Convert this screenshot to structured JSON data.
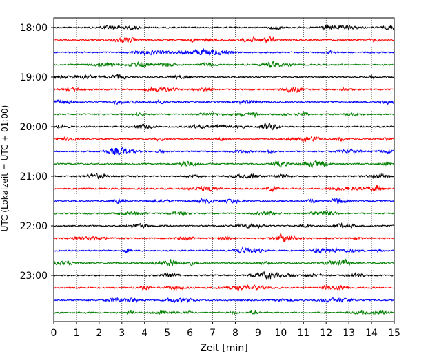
{
  "chart_data": {
    "type": "line",
    "subtype": "helicorder",
    "xlabel": "Zeit  [min]",
    "ylabel": "UTC (Lokalzeit = UTC + 01:00)",
    "xlim": [
      0,
      15
    ],
    "x_ticks": [
      "0",
      "1",
      "2",
      "3",
      "4",
      "5",
      "6",
      "7",
      "8",
      "9",
      "10",
      "11",
      "12",
      "13",
      "14",
      "15"
    ],
    "y_ticks": [
      "18:00",
      "19:00",
      "20:00",
      "21:00",
      "22:00",
      "23:00"
    ],
    "grid": "vertical dotted lines at each minute",
    "trace_colors": [
      "#000000",
      "#ff0000",
      "#0000ff",
      "#008000"
    ],
    "traces": [
      {
        "start_utc": "18:00",
        "color": "#000000"
      },
      {
        "start_utc": "18:15",
        "color": "#ff0000"
      },
      {
        "start_utc": "18:30",
        "color": "#0000ff"
      },
      {
        "start_utc": "18:45",
        "color": "#008000"
      },
      {
        "start_utc": "19:00",
        "color": "#000000"
      },
      {
        "start_utc": "19:15",
        "color": "#ff0000"
      },
      {
        "start_utc": "19:30",
        "color": "#0000ff"
      },
      {
        "start_utc": "19:45",
        "color": "#008000"
      },
      {
        "start_utc": "20:00",
        "color": "#000000"
      },
      {
        "start_utc": "20:15",
        "color": "#ff0000"
      },
      {
        "start_utc": "20:30",
        "color": "#0000ff"
      },
      {
        "start_utc": "20:45",
        "color": "#008000"
      },
      {
        "start_utc": "21:00",
        "color": "#000000"
      },
      {
        "start_utc": "21:15",
        "color": "#ff0000"
      },
      {
        "start_utc": "21:30",
        "color": "#0000ff"
      },
      {
        "start_utc": "21:45",
        "color": "#008000"
      },
      {
        "start_utc": "22:00",
        "color": "#000000"
      },
      {
        "start_utc": "22:15",
        "color": "#ff0000"
      },
      {
        "start_utc": "22:30",
        "color": "#0000ff"
      },
      {
        "start_utc": "22:45",
        "color": "#008000"
      },
      {
        "start_utc": "23:00",
        "color": "#000000"
      },
      {
        "start_utc": "23:15",
        "color": "#ff0000"
      },
      {
        "start_utc": "23:30",
        "color": "#0000ff"
      },
      {
        "start_utc": "23:45",
        "color": "#008000"
      }
    ]
  }
}
